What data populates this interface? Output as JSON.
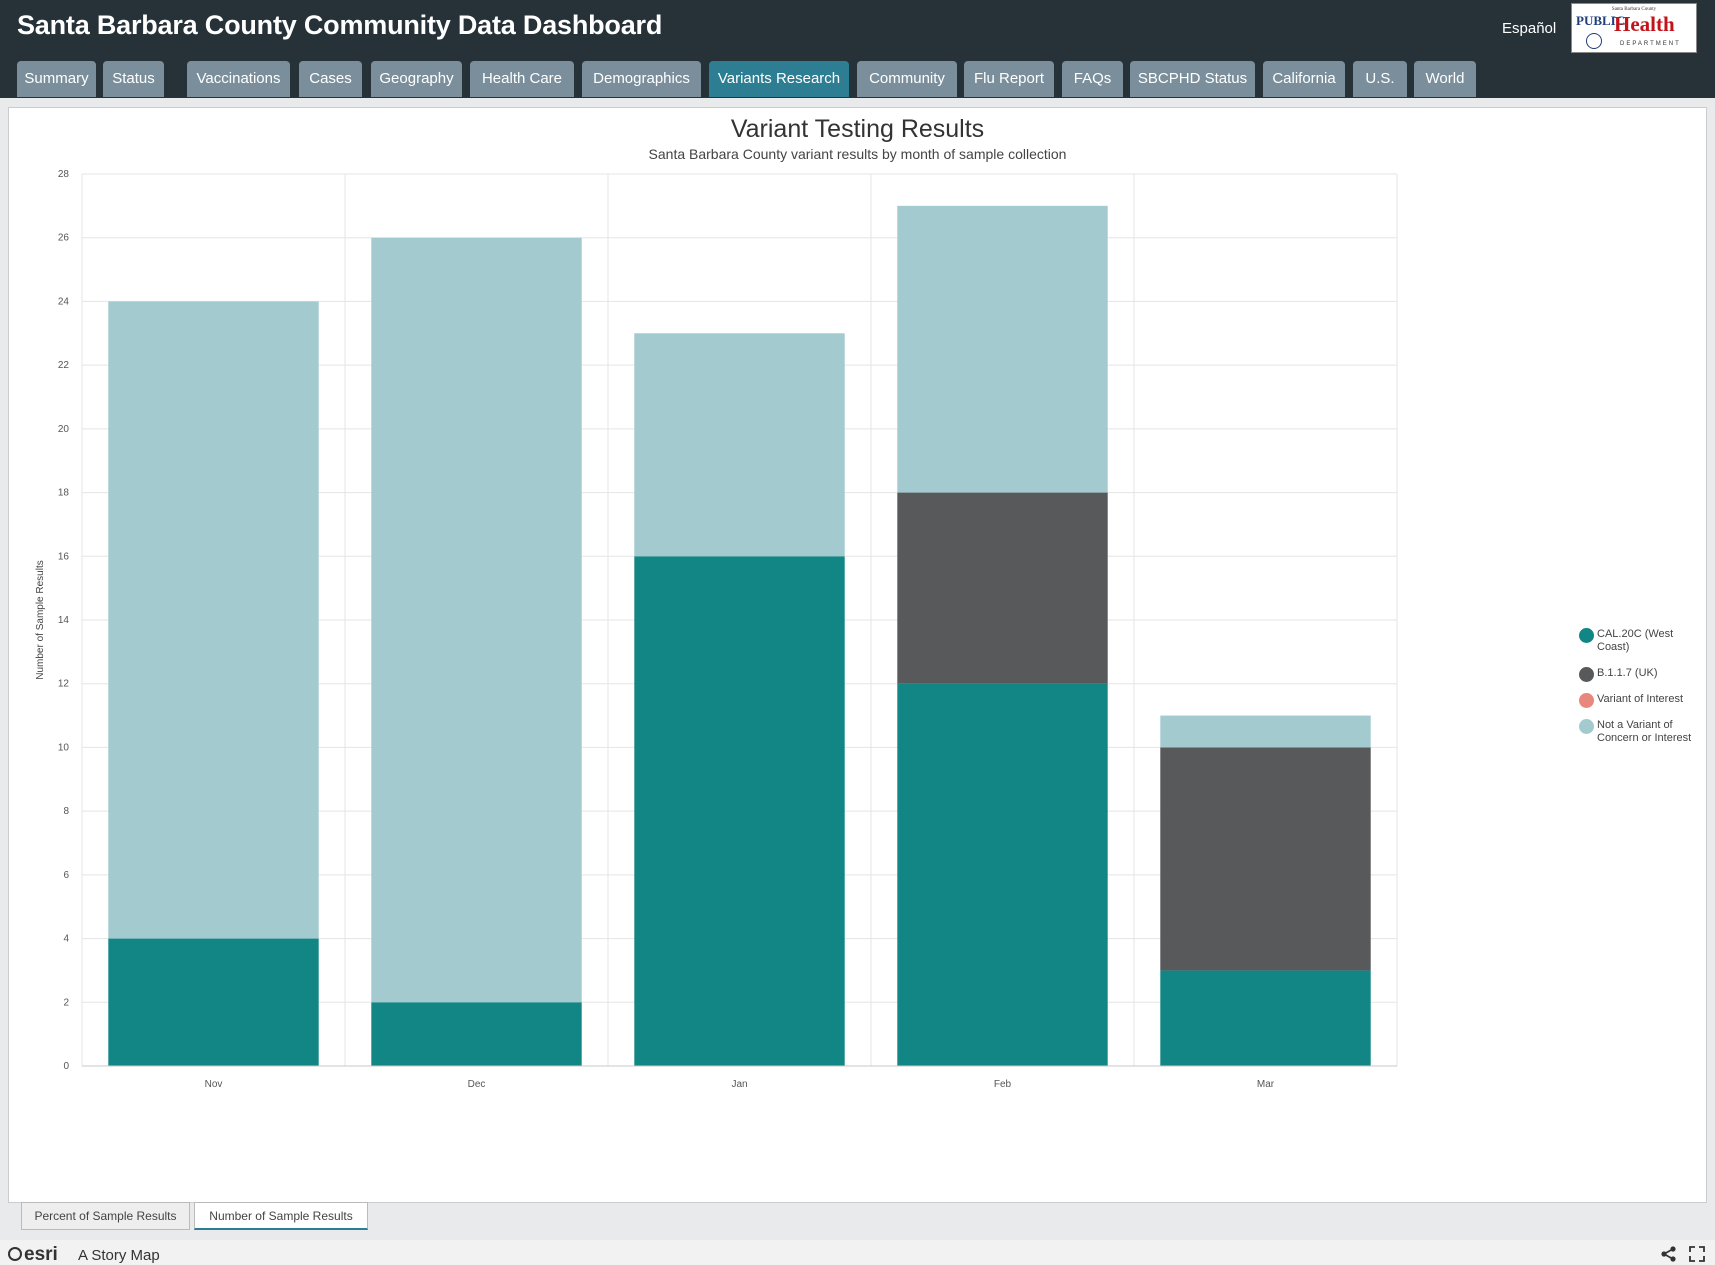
{
  "header": {
    "title": "Santa Barbara County Community Data Dashboard",
    "language_link": "Español",
    "logo": {
      "top_text": "Santa Barbara County",
      "public": "PUBLIC",
      "health": "Health",
      "department": "DEPARTMENT"
    }
  },
  "tabs": [
    {
      "label": "Summary",
      "active": false
    },
    {
      "label": "Status",
      "active": false
    },
    {
      "label": "Vaccinations",
      "active": false
    },
    {
      "label": "Cases",
      "active": false
    },
    {
      "label": "Geography",
      "active": false
    },
    {
      "label": "Health Care",
      "active": false
    },
    {
      "label": "Demographics",
      "active": false
    },
    {
      "label": "Variants Research",
      "active": true
    },
    {
      "label": "Community",
      "active": false
    },
    {
      "label": "Flu Report",
      "active": false
    },
    {
      "label": "FAQs",
      "active": false
    },
    {
      "label": "SBCPHD Status",
      "active": false
    },
    {
      "label": "California",
      "active": false
    },
    {
      "label": "U.S.",
      "active": false
    },
    {
      "label": "World",
      "active": false
    }
  ],
  "colors": {
    "header_bg": "#263238",
    "tab_bg": "#7a8f9b",
    "tab_active_bg": "#2d7e92"
  },
  "chart_data": {
    "type": "bar",
    "stacked": true,
    "title": "Variant Testing Results",
    "subtitle": "Santa Barbara County variant results by month of sample collection",
    "xlabel": "",
    "ylabel": "Number of Sample Results",
    "categories": [
      "Nov",
      "Dec",
      "Jan",
      "Feb",
      "Mar"
    ],
    "ylim": [
      0,
      28
    ],
    "yticks": [
      0,
      2,
      4,
      6,
      8,
      10,
      12,
      14,
      16,
      18,
      20,
      22,
      24,
      26,
      28
    ],
    "grid": true,
    "legend_position": "right",
    "series": [
      {
        "name": "CAL.20C (West Coast)",
        "color": "#128585",
        "values": [
          4,
          2,
          16,
          12,
          3
        ]
      },
      {
        "name": "B.1.1.7 (UK)",
        "color": "#58595b",
        "values": [
          0,
          0,
          0,
          6,
          7
        ]
      },
      {
        "name": "Variant of Interest",
        "color": "#e8877b",
        "values": [
          0,
          0,
          0,
          0,
          0
        ]
      },
      {
        "name": "Not a Variant of Concern or Interest",
        "color": "#a3cacf",
        "values": [
          20,
          24,
          7,
          9,
          1
        ]
      }
    ]
  },
  "legend": [
    {
      "label": "CAL.20C (West Coast)",
      "color": "#128585"
    },
    {
      "label": "B.1.1.7 (UK)",
      "color": "#58595b"
    },
    {
      "label": "Variant of Interest",
      "color": "#e8877b"
    },
    {
      "label": "Not a Variant of Concern or Interest",
      "color": "#a3cacf"
    }
  ],
  "bottom_tabs": [
    {
      "label": "Percent of Sample Results",
      "active": false
    },
    {
      "label": "Number of Sample Results",
      "active": true
    }
  ],
  "footer": {
    "brand": "esri",
    "story_map": "A Story Map"
  }
}
